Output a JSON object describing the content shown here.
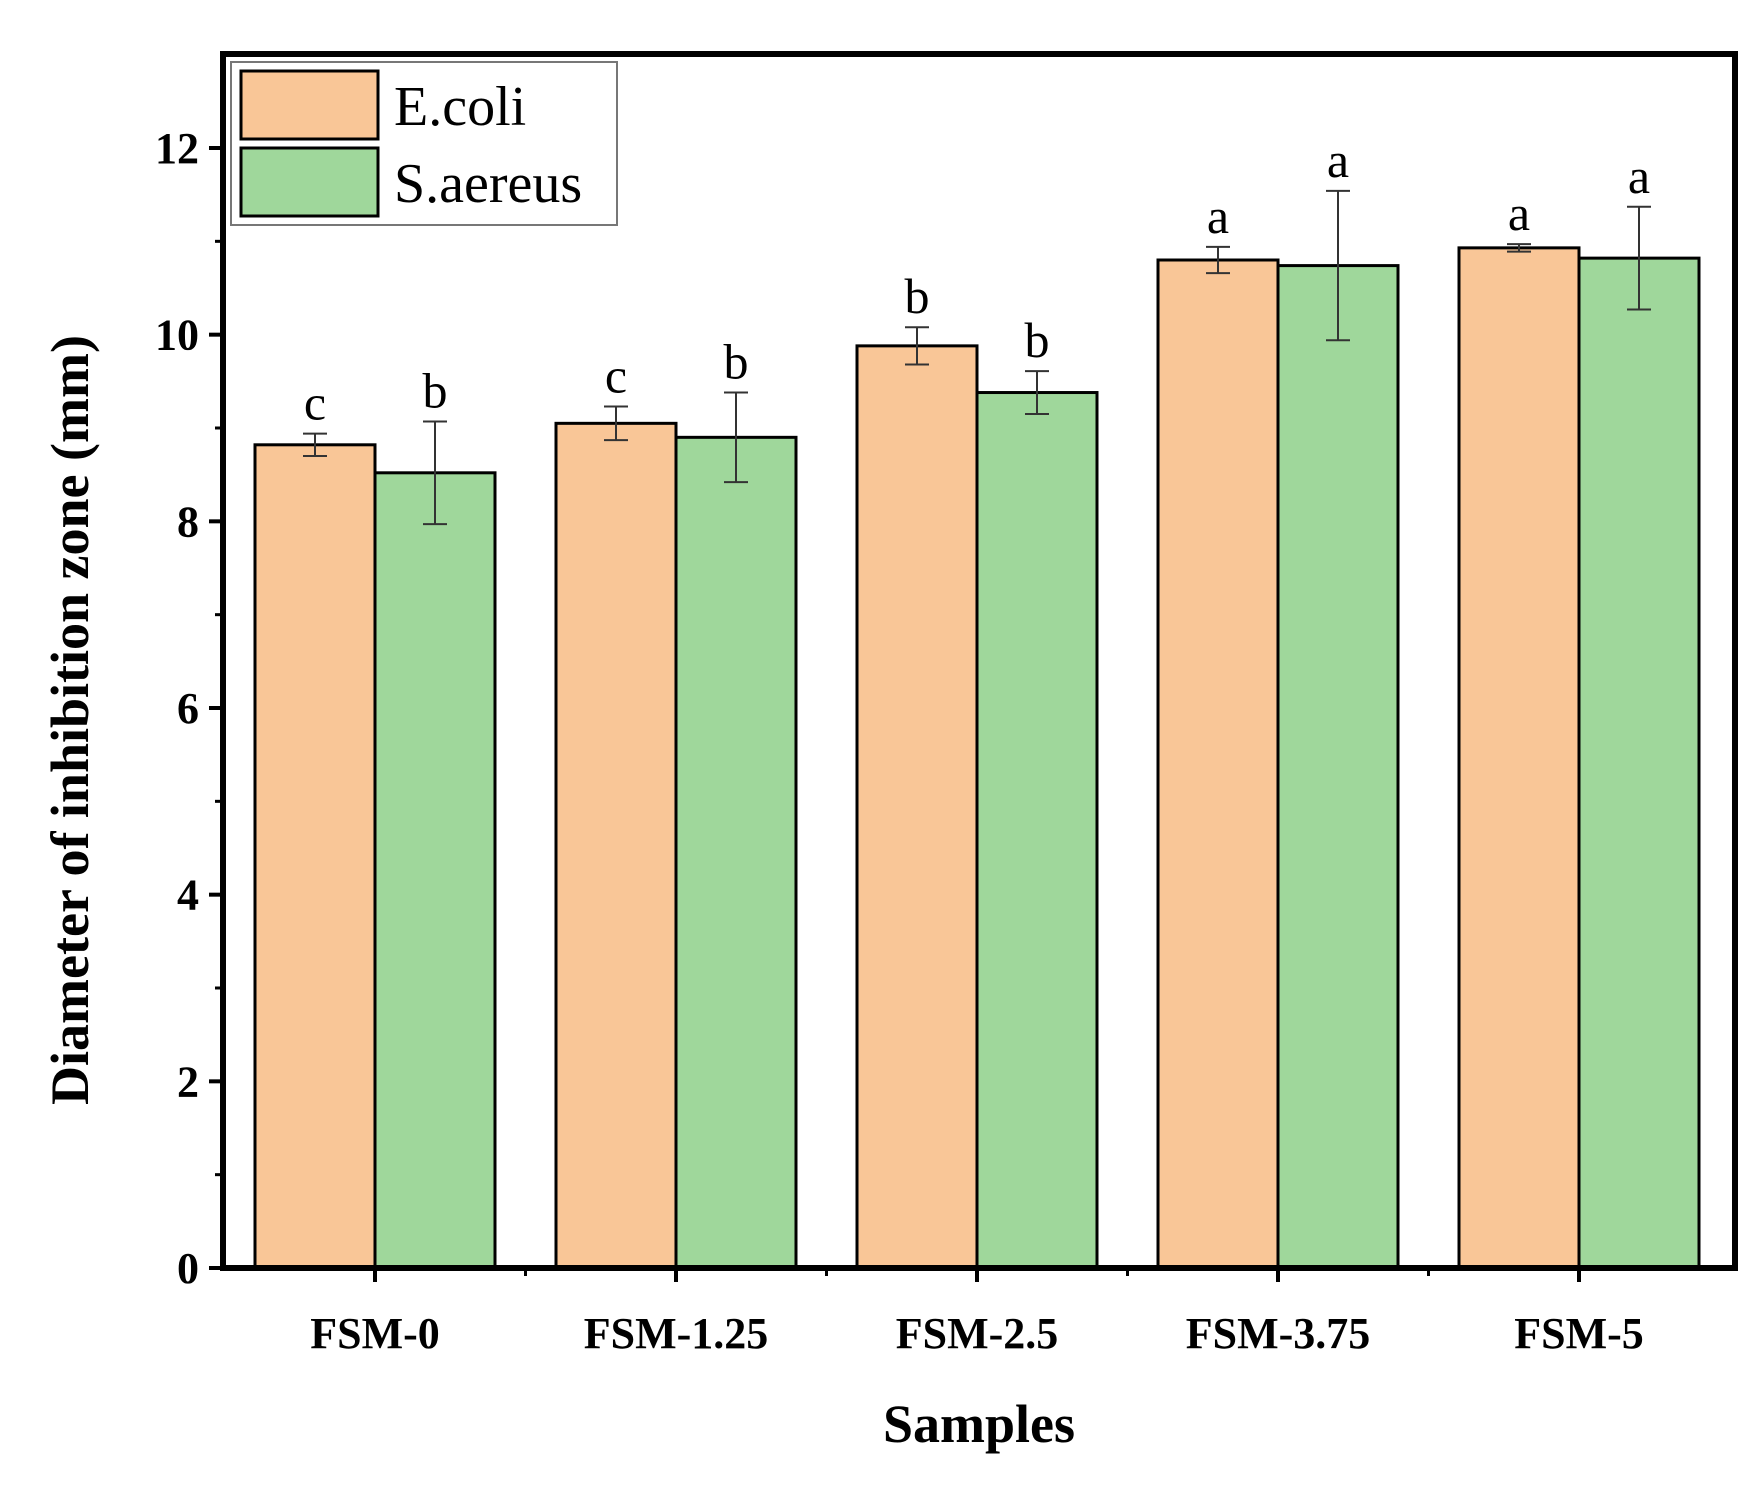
{
  "chart_data": {
    "type": "bar",
    "title": "",
    "xlabel": "Samples",
    "ylabel": "Diameter of inhibition zone (mm)",
    "ylim": [
      0,
      13
    ],
    "yticks": [
      "0",
      "2",
      "4",
      "6",
      "8",
      "10",
      "12"
    ],
    "categories": [
      "FSM-0",
      "FSM-1.25",
      "FSM-2.5",
      "FSM-3.75",
      "FSM-5"
    ],
    "legend_position": "top-left",
    "grid": false,
    "series": [
      {
        "name": "E.coli",
        "color": "#F9C697",
        "values": [
          8.82,
          9.05,
          9.88,
          10.8,
          10.93
        ],
        "errors": [
          0.12,
          0.18,
          0.2,
          0.14,
          0.04
        ],
        "significance": [
          "c",
          "c",
          "b",
          "a",
          "a"
        ]
      },
      {
        "name": "S.aereus",
        "color": "#9FD79B",
        "values": [
          8.52,
          8.9,
          9.38,
          10.74,
          10.82
        ],
        "errors": [
          0.55,
          0.48,
          0.23,
          0.8,
          0.55
        ],
        "significance": [
          "b",
          "b",
          "b",
          "a",
          "a"
        ]
      }
    ]
  }
}
